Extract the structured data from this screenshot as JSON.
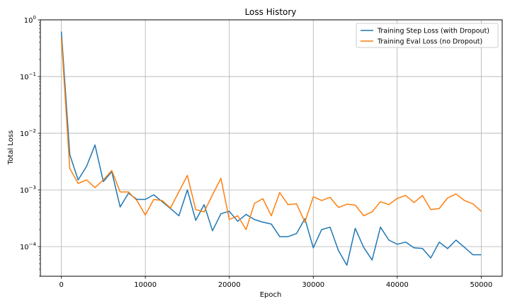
{
  "chart_data": {
    "type": "line",
    "title": "Loss History",
    "xlabel": "Epoch",
    "ylabel": "Total Loss",
    "xlim": [
      -2500,
      52500
    ],
    "ylim": [
      3e-05,
      1
    ],
    "yscale": "log",
    "grid": true,
    "legend_position": "top-right",
    "x_ticks": [
      0,
      10000,
      20000,
      30000,
      40000,
      50000
    ],
    "x_tick_labels": [
      "0",
      "10000",
      "20000",
      "30000",
      "40000",
      "50000"
    ],
    "y_ticks": [
      0.0001,
      0.001,
      0.01,
      0.1,
      1
    ],
    "y_tick_labels": [
      {
        "base": "10",
        "exp": "−4"
      },
      {
        "base": "10",
        "exp": "−3"
      },
      {
        "base": "10",
        "exp": "−2"
      },
      {
        "base": "10",
        "exp": "−1"
      },
      {
        "base": "10",
        "exp": "0"
      }
    ],
    "x": [
      0,
      1000,
      2000,
      3000,
      4000,
      5000,
      6000,
      7000,
      8000,
      9000,
      10000,
      11000,
      12000,
      13000,
      14000,
      15000,
      16000,
      17000,
      18000,
      19000,
      20000,
      21000,
      22000,
      23000,
      24000,
      25000,
      26000,
      27000,
      28000,
      29000,
      30000,
      31000,
      32000,
      33000,
      34000,
      35000,
      36000,
      37000,
      38000,
      39000,
      40000,
      41000,
      42000,
      43000,
      44000,
      45000,
      46000,
      47000,
      48000,
      49000,
      50000
    ],
    "series": [
      {
        "name": "Training Step Loss (with Dropout)",
        "color": "#1f77b4",
        "values": [
          0.62,
          0.0042,
          0.0015,
          0.0026,
          0.0062,
          0.0014,
          0.0021,
          0.0005,
          0.00088,
          0.00068,
          0.00068,
          0.00082,
          0.00062,
          0.00047,
          0.00035,
          0.001,
          0.00029,
          0.00055,
          0.00019,
          0.00038,
          0.00042,
          0.00028,
          0.00037,
          0.0003,
          0.00027,
          0.00025,
          0.00015,
          0.00015,
          0.00017,
          0.00031,
          9.5e-05,
          0.0002,
          0.00022,
          8.5e-05,
          4.7e-05,
          0.00021,
          9.7e-05,
          5.8e-05,
          0.00022,
          0.00013,
          0.00011,
          0.00012,
          9.5e-05,
          9.3e-05,
          6.3e-05,
          0.00012,
          9.2e-05,
          0.00013,
          9.7e-05,
          7.2e-05,
          7.2e-05
        ]
      },
      {
        "name": "Training Eval Loss (no Dropout)",
        "color": "#ff7f0e",
        "values": [
          0.48,
          0.0024,
          0.0013,
          0.0015,
          0.0011,
          0.0015,
          0.0022,
          0.00092,
          0.00092,
          0.00065,
          0.00036,
          0.00068,
          0.00065,
          0.00048,
          0.00093,
          0.0018,
          0.00045,
          0.00041,
          0.00082,
          0.0016,
          0.0003,
          0.00035,
          0.0002,
          0.00058,
          0.0007,
          0.00035,
          0.0009,
          0.00055,
          0.00057,
          0.00027,
          0.00076,
          0.00065,
          0.00074,
          0.00049,
          0.00056,
          0.00054,
          0.00035,
          0.00041,
          0.00062,
          0.00055,
          0.00071,
          0.0008,
          0.0006,
          0.0008,
          0.00045,
          0.00047,
          0.00072,
          0.00085,
          0.00065,
          0.00057,
          0.00042
        ]
      }
    ]
  }
}
